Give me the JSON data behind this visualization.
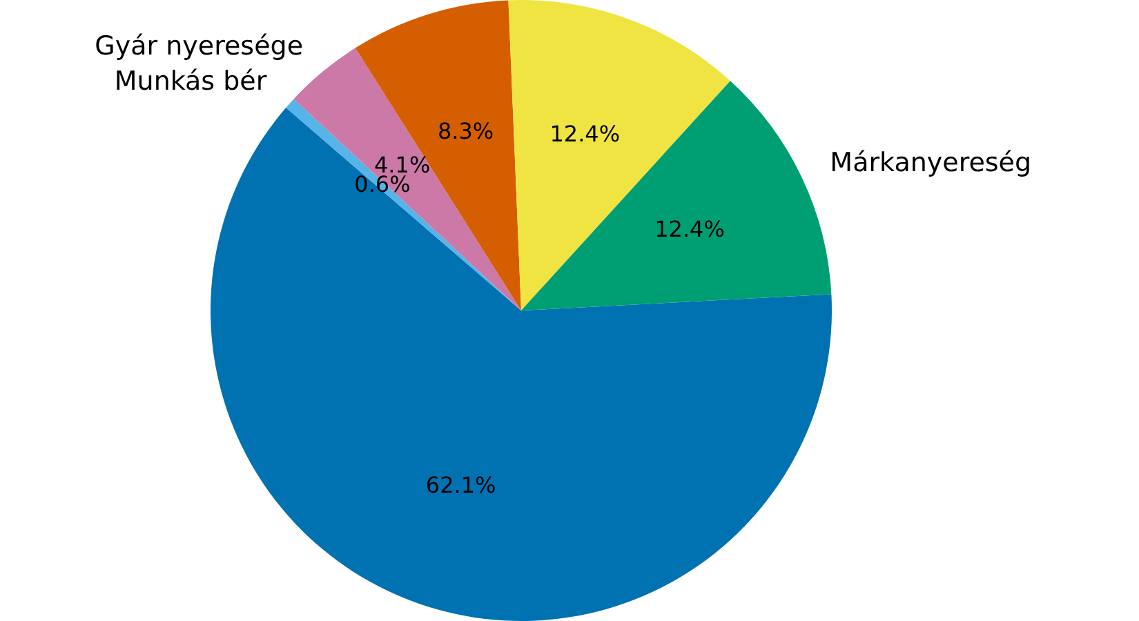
{
  "chart_data": {
    "type": "pie",
    "categories": [
      null,
      "Munkás bér",
      "Gyár nyeresége",
      null,
      null,
      "Márkanyereség"
    ],
    "values": [
      62.1,
      0.6,
      4.1,
      8.3,
      12.4,
      12.4
    ],
    "colors": [
      "#0072b2",
      "#56b4e9",
      "#cc79a7",
      "#d55e00",
      "#f0e442",
      "#009e73"
    ],
    "value_labels": [
      "62.1%",
      "0.6%",
      "4.1%",
      "8.3%",
      "12.4%",
      "12.4%"
    ],
    "legend": false
  }
}
